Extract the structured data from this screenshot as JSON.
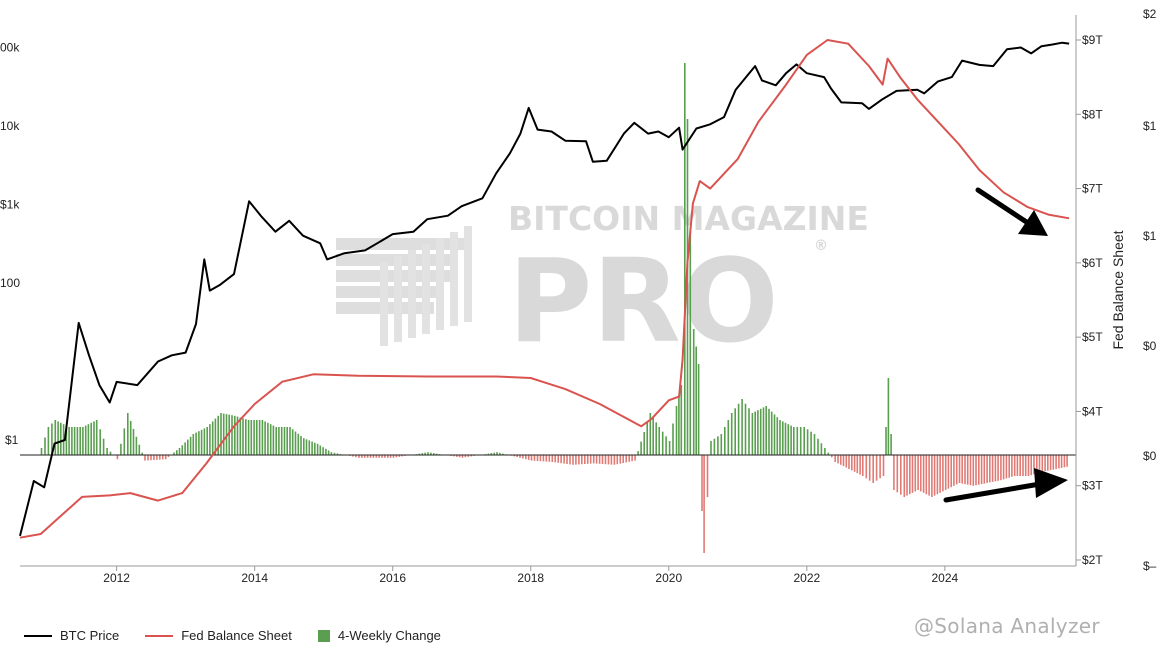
{
  "watermark": {
    "line1": "BITCOIN MAGAZINE",
    "line2": "PRO",
    "reg": "®"
  },
  "credit": {
    "text": "@Solana Analyzer"
  },
  "legend": [
    {
      "label": "BTC Price",
      "color": "#000000",
      "kind": "line"
    },
    {
      "label": "Fed Balance Sheet",
      "color": "#d9534f",
      "kind": "line"
    },
    {
      "label": "4-Weekly Change",
      "color": "#5a9e4f",
      "kind": "bar"
    }
  ],
  "chart_data": {
    "type": "line",
    "xlabel": "",
    "x_ticks": [
      "2012",
      "2014",
      "2016",
      "2018",
      "2020",
      "2022",
      "2024"
    ],
    "x_range": [
      2010.6,
      2025.9
    ],
    "left_axis": {
      "scale": "log",
      "ticks": [
        "$1",
        "100",
        "$1k",
        "10k",
        "00k"
      ]
    },
    "right_axis": {
      "label": "Fed Balance Sheet",
      "ticks": [
        "$2T",
        "$3T",
        "$4T",
        "$5T",
        "$6T",
        "$7T",
        "$8T",
        "$9T"
      ],
      "ylim": [
        2,
        9.2
      ]
    },
    "far_right_axis": {
      "ticks": [
        "$2",
        "$1",
        "$1",
        "$0",
        "$0",
        "$–"
      ]
    },
    "series": [
      {
        "name": "BTC Price",
        "color": "#000000",
        "axis": "left",
        "points": [
          [
            2010.6,
            0.06
          ],
          [
            2010.8,
            0.3
          ],
          [
            2010.95,
            0.25
          ],
          [
            2011.1,
            0.9
          ],
          [
            2011.25,
            1.0
          ],
          [
            2011.45,
            31
          ],
          [
            2011.6,
            12
          ],
          [
            2011.75,
            5
          ],
          [
            2011.9,
            3
          ],
          [
            2012.0,
            5.5
          ],
          [
            2012.3,
            5
          ],
          [
            2012.6,
            10
          ],
          [
            2012.8,
            12
          ],
          [
            2013.0,
            13
          ],
          [
            2013.15,
            30
          ],
          [
            2013.27,
            200
          ],
          [
            2013.35,
            80
          ],
          [
            2013.5,
            95
          ],
          [
            2013.7,
            130
          ],
          [
            2013.92,
            1100
          ],
          [
            2014.1,
            700
          ],
          [
            2014.3,
            450
          ],
          [
            2014.5,
            620
          ],
          [
            2014.7,
            400
          ],
          [
            2014.95,
            320
          ],
          [
            2015.05,
            200
          ],
          [
            2015.3,
            240
          ],
          [
            2015.6,
            260
          ],
          [
            2015.8,
            330
          ],
          [
            2016.0,
            420
          ],
          [
            2016.3,
            450
          ],
          [
            2016.5,
            650
          ],
          [
            2016.8,
            720
          ],
          [
            2017.0,
            950
          ],
          [
            2017.3,
            1200
          ],
          [
            2017.5,
            2500
          ],
          [
            2017.7,
            4500
          ],
          [
            2017.85,
            8000
          ],
          [
            2017.97,
            17000
          ],
          [
            2018.1,
            9000
          ],
          [
            2018.3,
            8500
          ],
          [
            2018.5,
            6500
          ],
          [
            2018.8,
            6400
          ],
          [
            2018.9,
            3500
          ],
          [
            2019.1,
            3600
          ],
          [
            2019.35,
            8000
          ],
          [
            2019.5,
            11000
          ],
          [
            2019.7,
            8000
          ],
          [
            2019.85,
            8500
          ],
          [
            2020.0,
            7200
          ],
          [
            2020.15,
            9500
          ],
          [
            2020.2,
            5000
          ],
          [
            2020.4,
            9300
          ],
          [
            2020.6,
            10500
          ],
          [
            2020.8,
            13000
          ],
          [
            2020.97,
            29000
          ],
          [
            2021.1,
            40000
          ],
          [
            2021.25,
            58000
          ],
          [
            2021.35,
            38000
          ],
          [
            2021.55,
            33000
          ],
          [
            2021.7,
            47000
          ],
          [
            2021.85,
            61000
          ],
          [
            2022.0,
            47000
          ],
          [
            2022.25,
            42000
          ],
          [
            2022.35,
            30000
          ],
          [
            2022.5,
            20000
          ],
          [
            2022.8,
            19500
          ],
          [
            2022.9,
            16500
          ],
          [
            2023.1,
            22000
          ],
          [
            2023.3,
            28000
          ],
          [
            2023.6,
            29000
          ],
          [
            2023.7,
            26000
          ],
          [
            2023.9,
            37000
          ],
          [
            2024.1,
            42000
          ],
          [
            2024.25,
            68000
          ],
          [
            2024.5,
            60000
          ],
          [
            2024.7,
            58000
          ],
          [
            2024.9,
            95000
          ],
          [
            2025.1,
            100000
          ],
          [
            2025.25,
            84000
          ],
          [
            2025.4,
            104000
          ],
          [
            2025.55,
            109000
          ],
          [
            2025.7,
            115000
          ],
          [
            2025.8,
            112000
          ]
        ]
      },
      {
        "name": "Fed Balance Sheet",
        "color": "#d9534f",
        "axis": "right",
        "points": [
          [
            2010.6,
            2.3
          ],
          [
            2010.9,
            2.35
          ],
          [
            2011.2,
            2.6
          ],
          [
            2011.5,
            2.85
          ],
          [
            2011.9,
            2.87
          ],
          [
            2012.2,
            2.9
          ],
          [
            2012.6,
            2.8
          ],
          [
            2012.95,
            2.9
          ],
          [
            2013.3,
            3.3
          ],
          [
            2013.7,
            3.8
          ],
          [
            2014.0,
            4.1
          ],
          [
            2014.4,
            4.4
          ],
          [
            2014.85,
            4.5
          ],
          [
            2015.5,
            4.48
          ],
          [
            2016.5,
            4.47
          ],
          [
            2017.5,
            4.47
          ],
          [
            2018.0,
            4.45
          ],
          [
            2018.5,
            4.3
          ],
          [
            2019.0,
            4.1
          ],
          [
            2019.6,
            3.8
          ],
          [
            2019.75,
            3.9
          ],
          [
            2020.0,
            4.15
          ],
          [
            2020.15,
            4.2
          ],
          [
            2020.2,
            4.7
          ],
          [
            2020.27,
            6.0
          ],
          [
            2020.35,
            6.8
          ],
          [
            2020.45,
            7.1
          ],
          [
            2020.6,
            7.0
          ],
          [
            2020.8,
            7.2
          ],
          [
            2021.0,
            7.4
          ],
          [
            2021.3,
            7.9
          ],
          [
            2021.7,
            8.4
          ],
          [
            2022.0,
            8.8
          ],
          [
            2022.3,
            9.0
          ],
          [
            2022.6,
            8.95
          ],
          [
            2022.9,
            8.65
          ],
          [
            2023.1,
            8.4
          ],
          [
            2023.17,
            8.75
          ],
          [
            2023.35,
            8.5
          ],
          [
            2023.6,
            8.2
          ],
          [
            2023.9,
            7.9
          ],
          [
            2024.2,
            7.6
          ],
          [
            2024.5,
            7.25
          ],
          [
            2024.85,
            6.95
          ],
          [
            2025.2,
            6.75
          ],
          [
            2025.5,
            6.65
          ],
          [
            2025.8,
            6.6
          ]
        ]
      },
      {
        "name": "4-Weekly Change",
        "color": "#5a9e4f",
        "negative_color": "#e07a74",
        "axis": "change",
        "kind": "bar",
        "ylim": [
          -1,
          3
        ],
        "points": [
          [
            2010.9,
            0.05
          ],
          [
            2011.0,
            0.2
          ],
          [
            2011.1,
            0.25
          ],
          [
            2011.3,
            0.2
          ],
          [
            2011.5,
            0.2
          ],
          [
            2011.7,
            0.25
          ],
          [
            2011.85,
            0.05
          ],
          [
            2012.0,
            -0.03
          ],
          [
            2012.15,
            0.3
          ],
          [
            2012.4,
            -0.04
          ],
          [
            2012.7,
            -0.03
          ],
          [
            2012.9,
            0.05
          ],
          [
            2013.1,
            0.15
          ],
          [
            2013.3,
            0.2
          ],
          [
            2013.5,
            0.3
          ],
          [
            2013.7,
            0.28
          ],
          [
            2013.9,
            0.25
          ],
          [
            2014.1,
            0.25
          ],
          [
            2014.3,
            0.2
          ],
          [
            2014.5,
            0.2
          ],
          [
            2014.7,
            0.12
          ],
          [
            2014.9,
            0.08
          ],
          [
            2015.1,
            0.02
          ],
          [
            2015.5,
            -0.02
          ],
          [
            2016.0,
            -0.02
          ],
          [
            2016.5,
            0.02
          ],
          [
            2017.0,
            -0.02
          ],
          [
            2017.5,
            0.02
          ],
          [
            2018.0,
            -0.04
          ],
          [
            2018.3,
            -0.05
          ],
          [
            2018.6,
            -0.07
          ],
          [
            2018.9,
            -0.06
          ],
          [
            2019.2,
            -0.07
          ],
          [
            2019.5,
            -0.04
          ],
          [
            2019.72,
            0.3
          ],
          [
            2019.85,
            0.2
          ],
          [
            2020.0,
            0.1
          ],
          [
            2020.1,
            0.35
          ],
          [
            2020.17,
            0.5
          ],
          [
            2020.22,
            2.8
          ],
          [
            2020.26,
            2.4
          ],
          [
            2020.3,
            1.6
          ],
          [
            2020.35,
            0.9
          ],
          [
            2020.42,
            0.65
          ],
          [
            2020.47,
            -0.4
          ],
          [
            2020.5,
            -0.7
          ],
          [
            2020.6,
            0.1
          ],
          [
            2020.75,
            0.15
          ],
          [
            2020.9,
            0.3
          ],
          [
            2021.05,
            0.4
          ],
          [
            2021.2,
            0.3
          ],
          [
            2021.4,
            0.35
          ],
          [
            2021.6,
            0.25
          ],
          [
            2021.8,
            0.2
          ],
          [
            2021.95,
            0.2
          ],
          [
            2022.1,
            0.15
          ],
          [
            2022.25,
            0.05
          ],
          [
            2022.4,
            -0.05
          ],
          [
            2022.6,
            -0.1
          ],
          [
            2022.8,
            -0.15
          ],
          [
            2022.95,
            -0.2
          ],
          [
            2023.1,
            -0.15
          ],
          [
            2023.17,
            0.55
          ],
          [
            2023.25,
            -0.25
          ],
          [
            2023.4,
            -0.3
          ],
          [
            2023.6,
            -0.25
          ],
          [
            2023.8,
            -0.3
          ],
          [
            2024.0,
            -0.25
          ],
          [
            2024.2,
            -0.2
          ],
          [
            2024.4,
            -0.22
          ],
          [
            2024.6,
            -0.2
          ],
          [
            2024.8,
            -0.18
          ],
          [
            2025.0,
            -0.15
          ],
          [
            2025.2,
            -0.15
          ],
          [
            2025.4,
            -0.12
          ],
          [
            2025.6,
            -0.1
          ],
          [
            2025.8,
            -0.08
          ]
        ]
      }
    ],
    "grid": false,
    "legend_position": "bottom-left"
  }
}
